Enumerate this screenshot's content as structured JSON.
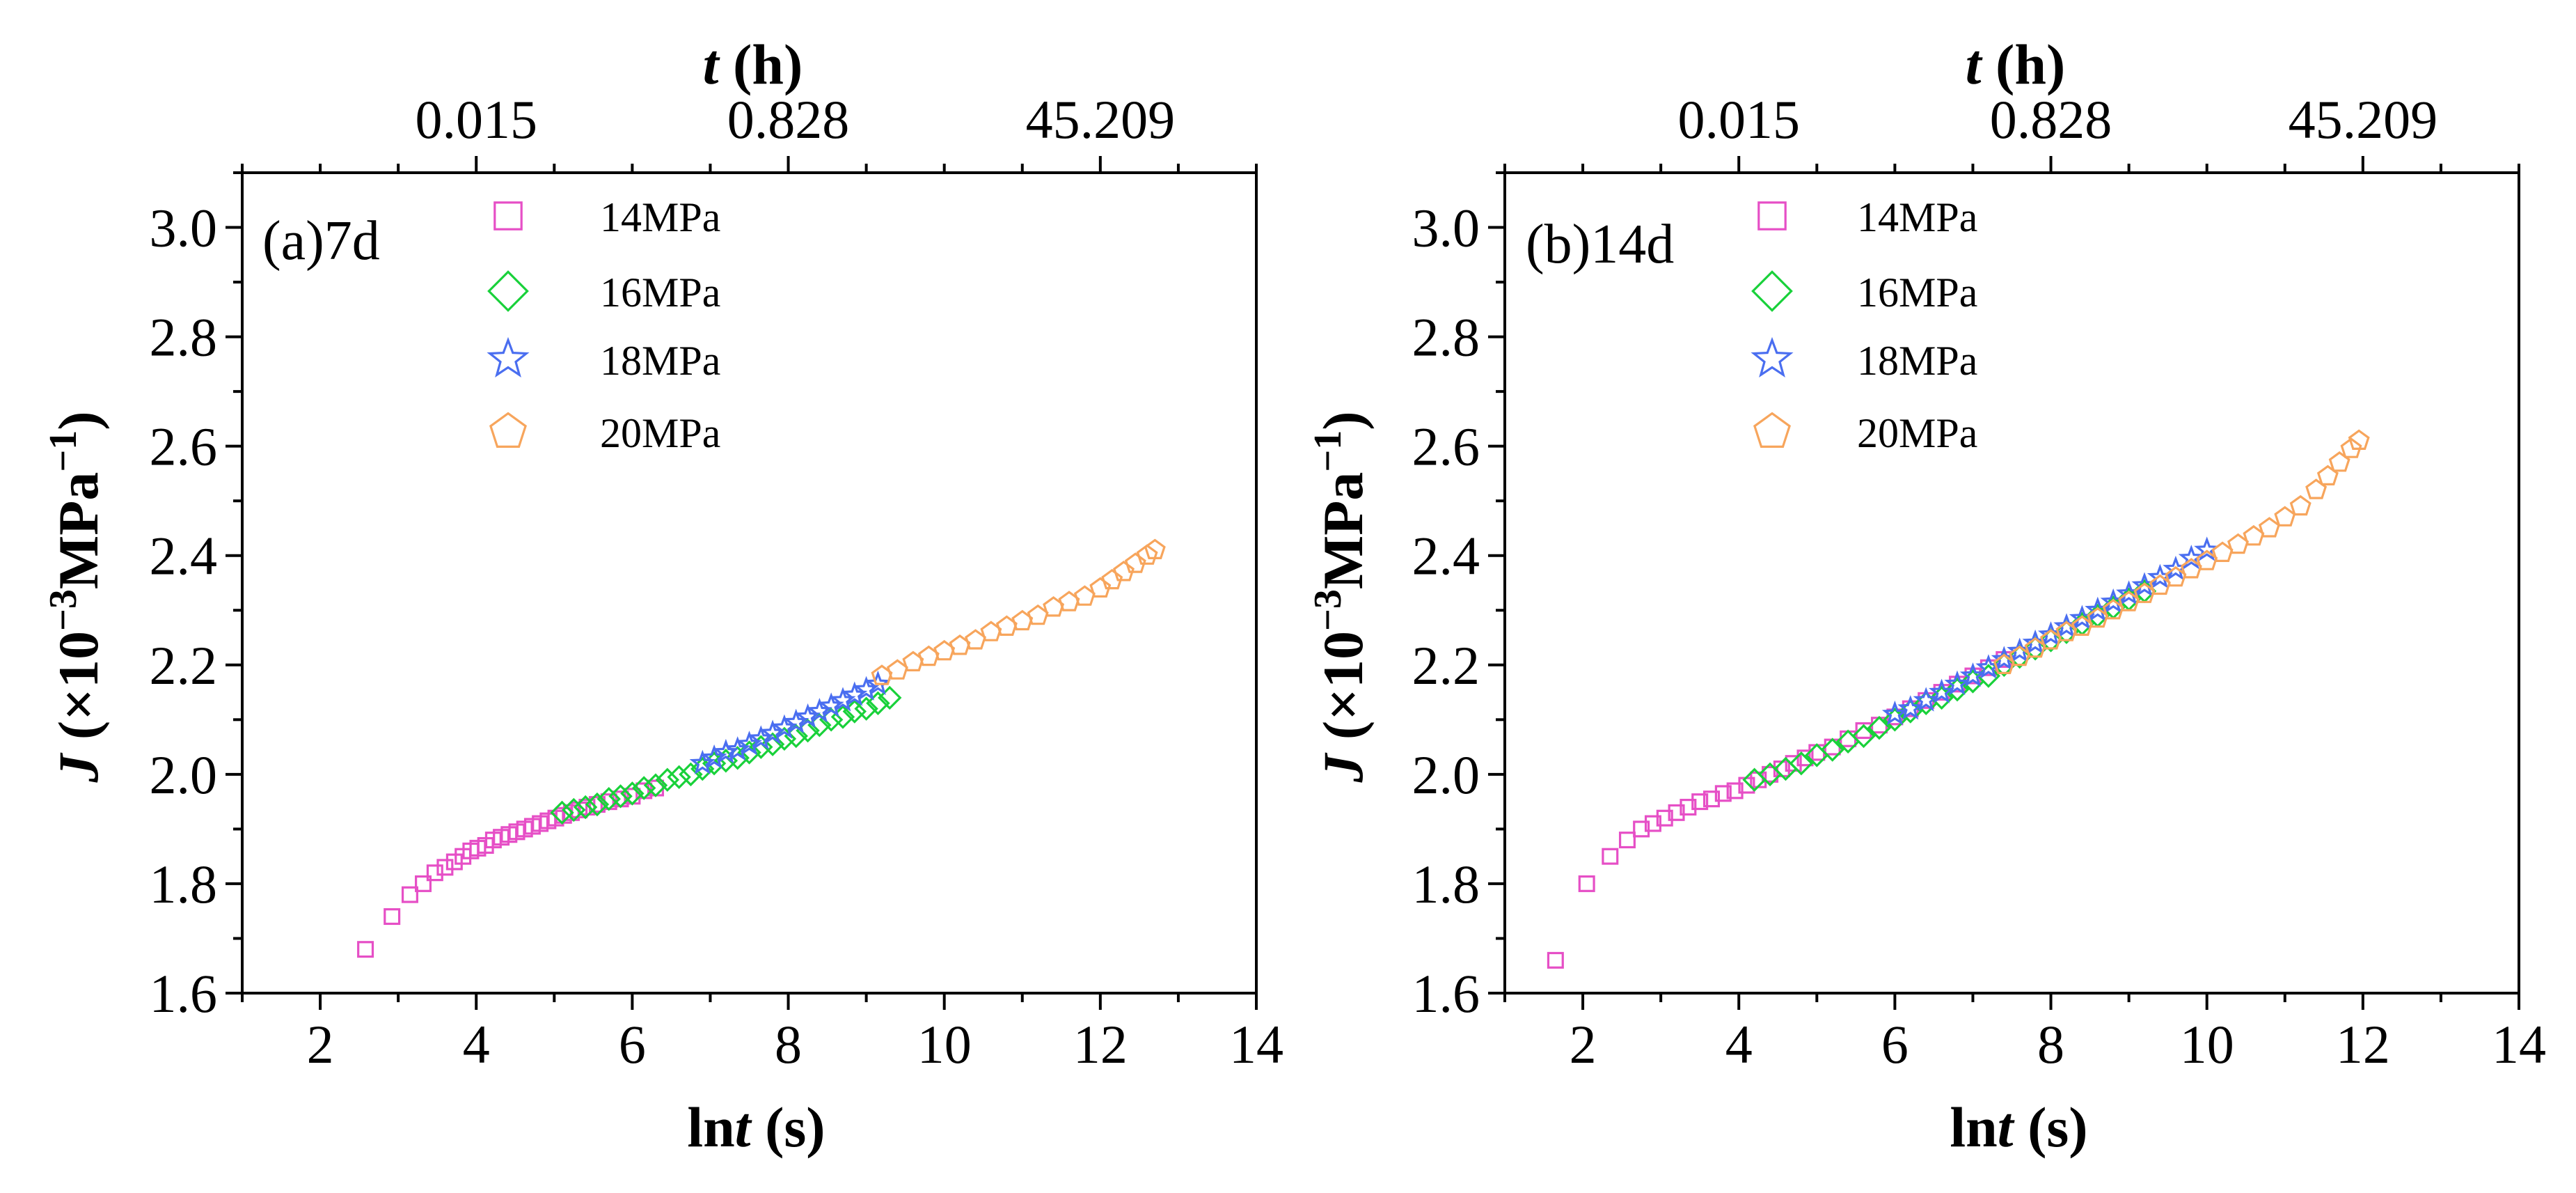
{
  "chart_data": [
    {
      "type": "scatter",
      "panel_label": "(a)7d",
      "xlabel_prefix": "ln",
      "xlabel_var": "t",
      "xlabel_unit": " (s)",
      "ylabel_var": "J",
      "ylabel_pre": " (×10",
      "ylabel_exp1": "−3",
      "ylabel_mid": "MPa",
      "ylabel_exp2": "−1",
      "ylabel_post": ")",
      "top_axis_var": "t",
      "top_axis_unit": " (h)",
      "xlim": [
        1,
        14
      ],
      "ylim": [
        1.6,
        3.1
      ],
      "xticks": [
        2,
        4,
        6,
        8,
        10,
        12,
        14
      ],
      "yticks": [
        1.6,
        1.8,
        2.0,
        2.2,
        2.4,
        2.6,
        2.8,
        3.0
      ],
      "yticklabels": [
        "1.6",
        "1.8",
        "2.0",
        "2.2",
        "2.4",
        "2.6",
        "2.8",
        "3.0"
      ],
      "top_ticks": [
        {
          "label": "0.015",
          "lnt": 4.0
        },
        {
          "label": "0.828",
          "lnt": 8.0
        },
        {
          "label": "45.209",
          "lnt": 12.0
        }
      ],
      "legend_position": "top-left",
      "series": [
        {
          "name": "14MPa",
          "marker": "square",
          "color": "#e64fc6",
          "fill": "none",
          "x": [
            2.58,
            2.92,
            3.15,
            3.32,
            3.47,
            3.6,
            3.72,
            3.83,
            3.93,
            4.02,
            4.12,
            4.22,
            4.32,
            4.42,
            4.52,
            4.62,
            4.72,
            4.82,
            4.92,
            5.02,
            5.12,
            5.22,
            5.32,
            5.42,
            5.55,
            5.7,
            5.85,
            6.0,
            6.15,
            6.3
          ],
          "y": [
            1.68,
            1.74,
            1.78,
            1.8,
            1.82,
            1.83,
            1.84,
            1.85,
            1.86,
            1.865,
            1.87,
            1.88,
            1.885,
            1.89,
            1.895,
            1.9,
            1.905,
            1.91,
            1.915,
            1.92,
            1.925,
            1.93,
            1.935,
            1.94,
            1.945,
            1.95,
            1.955,
            1.96,
            1.97,
            1.975
          ]
        },
        {
          "name": "16MPa",
          "marker": "diamond",
          "color": "#19d13a",
          "fill": "none",
          "x": [
            5.1,
            5.25,
            5.4,
            5.55,
            5.7,
            5.85,
            6.0,
            6.15,
            6.3,
            6.45,
            6.6,
            6.75,
            6.9,
            7.05,
            7.2,
            7.35,
            7.5,
            7.65,
            7.8,
            7.95,
            8.1,
            8.25,
            8.4,
            8.55,
            8.7,
            8.85,
            9.0,
            9.15,
            9.3
          ],
          "y": [
            1.93,
            1.935,
            1.94,
            1.945,
            1.955,
            1.96,
            1.965,
            1.975,
            1.98,
            1.99,
            1.995,
            2.0,
            2.01,
            2.02,
            2.025,
            2.03,
            2.04,
            2.05,
            2.055,
            2.065,
            2.07,
            2.08,
            2.09,
            2.1,
            2.105,
            2.115,
            2.12,
            2.13,
            2.14
          ]
        },
        {
          "name": "18MPa",
          "marker": "star",
          "color": "#4a6ef0",
          "fill": "none",
          "x": [
            6.9,
            7.05,
            7.2,
            7.35,
            7.5,
            7.65,
            7.8,
            7.95,
            8.1,
            8.25,
            8.4,
            8.55,
            8.7,
            8.85,
            9.0,
            9.15
          ],
          "y": [
            2.02,
            2.03,
            2.04,
            2.045,
            2.055,
            2.065,
            2.075,
            2.085,
            2.095,
            2.105,
            2.115,
            2.125,
            2.135,
            2.145,
            2.155,
            2.165
          ]
        },
        {
          "name": "20MPa",
          "marker": "pentagon",
          "color": "#f7a55c",
          "fill": "none",
          "x": [
            9.2,
            9.4,
            9.6,
            9.8,
            10.0,
            10.2,
            10.4,
            10.6,
            10.8,
            11.0,
            11.2,
            11.4,
            11.6,
            11.8,
            12.0,
            12.15,
            12.3,
            12.45,
            12.6,
            12.7
          ],
          "y": [
            2.18,
            2.19,
            2.205,
            2.215,
            2.225,
            2.235,
            2.245,
            2.26,
            2.27,
            2.28,
            2.29,
            2.305,
            2.315,
            2.325,
            2.34,
            2.355,
            2.37,
            2.385,
            2.4,
            2.41
          ]
        }
      ]
    },
    {
      "type": "scatter",
      "panel_label": "(b)14d",
      "xlabel_prefix": "ln",
      "xlabel_var": "t",
      "xlabel_unit": " (s)",
      "ylabel_var": "J",
      "ylabel_pre": " (×10",
      "ylabel_exp1": "−3",
      "ylabel_mid": "MPa",
      "ylabel_exp2": "−1",
      "ylabel_post": ")",
      "top_axis_var": "t",
      "top_axis_unit": " (h)",
      "xlim": [
        1,
        14
      ],
      "ylim": [
        1.6,
        3.1
      ],
      "xticks": [
        2,
        4,
        6,
        8,
        10,
        12,
        14
      ],
      "yticks": [
        1.6,
        1.8,
        2.0,
        2.2,
        2.4,
        2.6,
        2.8,
        3.0
      ],
      "yticklabels": [
        "1.6",
        "1.8",
        "2.0",
        "2.2",
        "2.4",
        "2.6",
        "2.8",
        "3.0"
      ],
      "top_ticks": [
        {
          "label": "0.015",
          "lnt": 4.0
        },
        {
          "label": "0.828",
          "lnt": 8.0
        },
        {
          "label": "45.209",
          "lnt": 12.0
        }
      ],
      "legend_position": "top-left",
      "series": [
        {
          "name": "14MPa",
          "marker": "square",
          "color": "#e64fc6",
          "fill": "none",
          "x": [
            1.65,
            2.05,
            2.35,
            2.57,
            2.75,
            2.9,
            3.05,
            3.2,
            3.35,
            3.5,
            3.65,
            3.8,
            3.95,
            4.1,
            4.25,
            4.4,
            4.55,
            4.7,
            4.85,
            5.0,
            5.2,
            5.4,
            5.6,
            5.8,
            6.0,
            6.2,
            6.4,
            6.6,
            6.8,
            7.0,
            7.2,
            7.4
          ],
          "y": [
            1.66,
            1.8,
            1.85,
            1.88,
            1.9,
            1.91,
            1.92,
            1.93,
            1.94,
            1.95,
            1.955,
            1.965,
            1.97,
            1.98,
            1.99,
            2.0,
            2.01,
            2.02,
            2.03,
            2.04,
            2.05,
            2.065,
            2.08,
            2.09,
            2.105,
            2.12,
            2.135,
            2.15,
            2.165,
            2.18,
            2.195,
            2.21
          ]
        },
        {
          "name": "16MPa",
          "marker": "diamond",
          "color": "#19d13a",
          "fill": "none",
          "x": [
            4.2,
            4.4,
            4.6,
            4.8,
            5.0,
            5.2,
            5.4,
            5.6,
            5.8,
            6.0,
            6.2,
            6.4,
            6.6,
            6.8,
            7.0,
            7.2,
            7.4,
            7.6,
            7.8,
            8.0,
            8.2,
            8.4,
            8.6,
            8.8,
            9.0,
            9.2
          ],
          "y": [
            1.99,
            2.0,
            2.01,
            2.02,
            2.035,
            2.045,
            2.06,
            2.07,
            2.085,
            2.1,
            2.115,
            2.13,
            2.14,
            2.155,
            2.17,
            2.18,
            2.2,
            2.215,
            2.23,
            2.245,
            2.26,
            2.275,
            2.29,
            2.305,
            2.32,
            2.335
          ]
        },
        {
          "name": "18MPa",
          "marker": "star",
          "color": "#4a6ef0",
          "fill": "none",
          "x": [
            6.0,
            6.2,
            6.4,
            6.6,
            6.8,
            7.0,
            7.2,
            7.4,
            7.6,
            7.8,
            8.0,
            8.2,
            8.4,
            8.6,
            8.8,
            9.0,
            9.2,
            9.4,
            9.6,
            9.8,
            10.0
          ],
          "y": [
            2.11,
            2.12,
            2.135,
            2.15,
            2.165,
            2.18,
            2.195,
            2.21,
            2.225,
            2.24,
            2.255,
            2.27,
            2.285,
            2.3,
            2.315,
            2.33,
            2.345,
            2.36,
            2.375,
            2.395,
            2.41
          ]
        },
        {
          "name": "20MPa",
          "marker": "pentagon",
          "color": "#f7a55c",
          "fill": "none",
          "x": [
            7.4,
            7.6,
            7.8,
            8.0,
            8.2,
            8.4,
            8.6,
            8.8,
            9.0,
            9.2,
            9.4,
            9.6,
            9.8,
            10.0,
            10.2,
            10.4,
            10.6,
            10.8,
            11.0,
            11.2,
            11.4,
            11.55,
            11.7,
            11.85,
            11.95
          ],
          "y": [
            2.2,
            2.215,
            2.23,
            2.245,
            2.26,
            2.27,
            2.285,
            2.3,
            2.315,
            2.33,
            2.345,
            2.36,
            2.375,
            2.39,
            2.405,
            2.42,
            2.435,
            2.45,
            2.47,
            2.49,
            2.52,
            2.545,
            2.57,
            2.595,
            2.61
          ]
        }
      ]
    }
  ]
}
